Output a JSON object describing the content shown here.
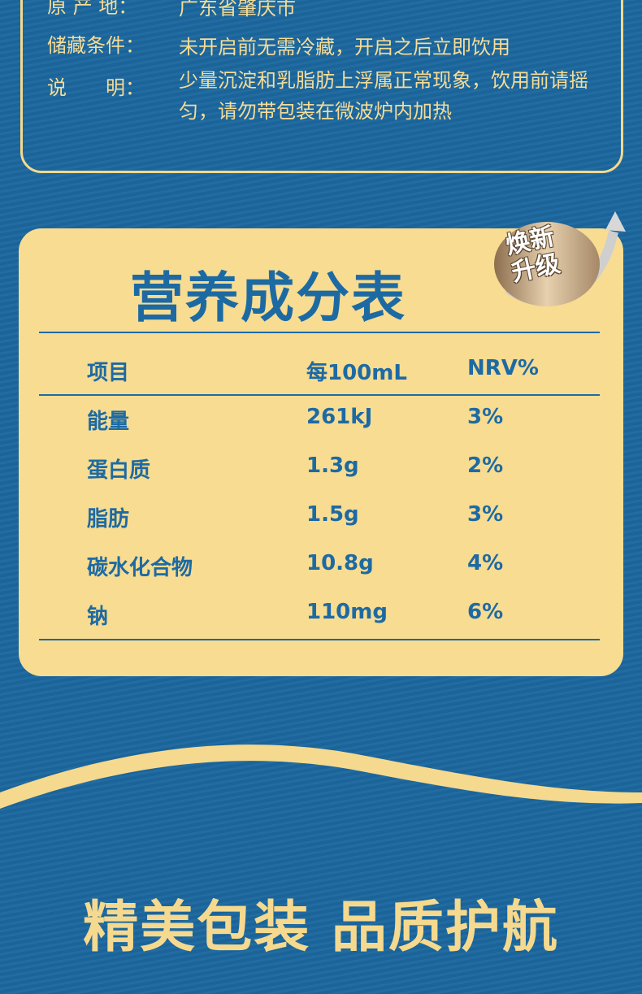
{
  "info": [
    {
      "label": "原 产 地：",
      "value": "广东省肇庆市"
    },
    {
      "label": "储藏条件：",
      "value": "未开启前无需冷藏，开启之后立即饮用"
    },
    {
      "label": "说　　明：",
      "value": "少量沉淀和乳脂肪上浮属正常现象，饮用前请摇匀，请勿带包装在微波炉内加热"
    }
  ],
  "nutrition": {
    "title": "营养成分表",
    "badge": "焕新升级",
    "headers": [
      "项目",
      "每100mL",
      "NRV%"
    ],
    "rows": [
      [
        "能量",
        "261kJ",
        "3%"
      ],
      [
        "蛋白质",
        "1.3g",
        "2%"
      ],
      [
        "脂肪",
        "1.5g",
        "3%"
      ],
      [
        "碳水化合物",
        "10.8g",
        "4%"
      ],
      [
        "钠",
        "110mg",
        "6%"
      ]
    ]
  },
  "slogan": "精美包装 品质护航",
  "colors": {
    "background": "#1b679f",
    "cream": "#f7dc92",
    "text_blue": "#1d6aa3"
  }
}
